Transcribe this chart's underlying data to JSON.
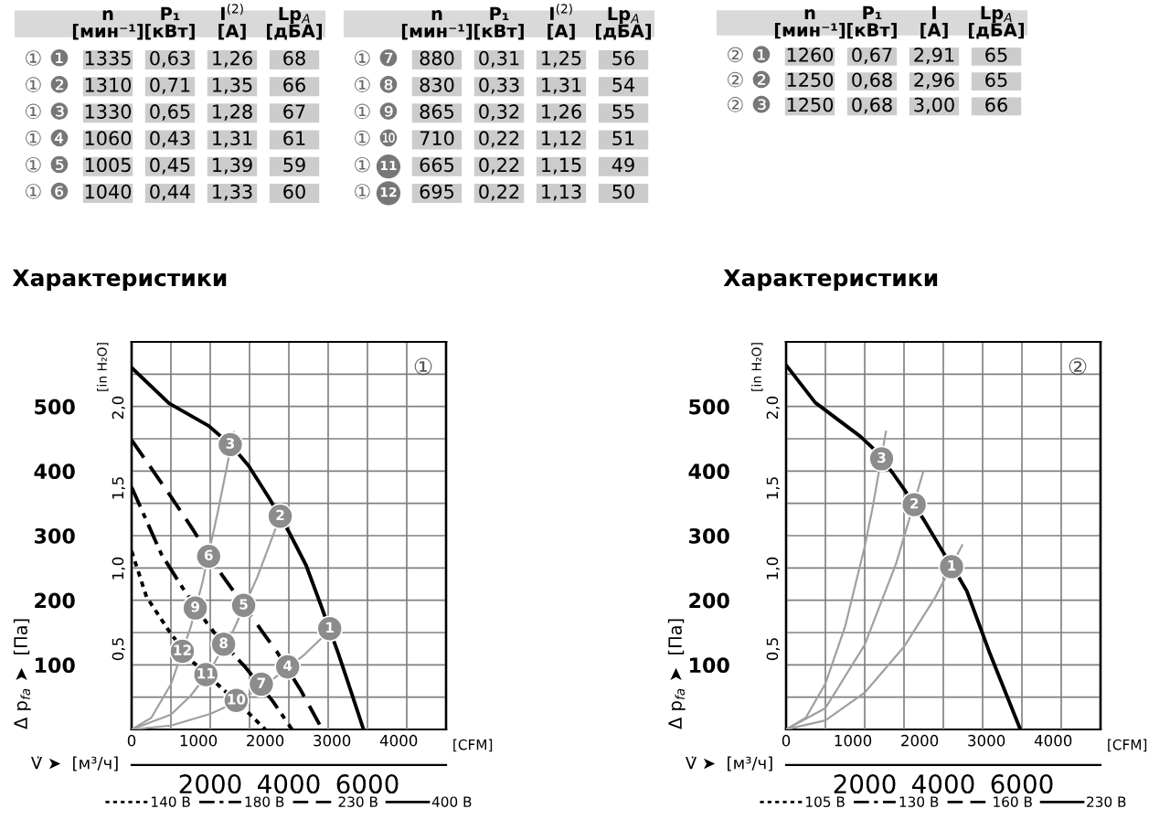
{
  "chart_data": [
    {
      "type": "other",
      "categories": [
        "n\n[мин⁻¹]",
        "P₁\n[кВт]",
        "I$^{(2)}$\n[A]",
        "Lp$_{A}$\n[дБА]"
      ],
      "y_categories": [
        "① ❶",
        "① ❷",
        "① ❸",
        "① ❹",
        "① ❺",
        "① ❻"
      ],
      "cell_labels": [
        [
          "1335",
          "0,63",
          "1,26",
          "68"
        ],
        [
          "1310",
          "0,71",
          "1,35",
          "66"
        ],
        [
          "1330",
          "0,65",
          "1,28",
          "67"
        ],
        [
          "1060",
          "0,43",
          "1,31",
          "61"
        ],
        [
          "1005",
          "0,45",
          "1,39",
          "59"
        ],
        [
          "1040",
          "0,44",
          "1,33",
          "60"
        ]
      ]
    },
    {
      "type": "other",
      "categories": [
        "n\n[мин⁻¹]",
        "P₁\n[кВт]",
        "I$^{(2)}$\n[A]",
        "Lp$_{A}$\n[дБА]"
      ],
      "y_categories": [
        "① ❼",
        "① ❽",
        "① ❾",
        "① ❿",
        "① 11",
        "① 12"
      ],
      "cell_labels": [
        [
          "880",
          "0,31",
          "1,25",
          "56"
        ],
        [
          "830",
          "0,33",
          "1,31",
          "54"
        ],
        [
          "865",
          "0,32",
          "1,26",
          "55"
        ],
        [
          "710",
          "0,22",
          "1,12",
          "51"
        ],
        [
          "665",
          "0,22",
          "1,15",
          "49"
        ],
        [
          "695",
          "0,22",
          "1,13",
          "50"
        ]
      ]
    },
    {
      "type": "other",
      "categories": [
        "n\n[мин⁻¹]",
        "P₁\n[кВт]",
        "I\n[A]",
        "Lp$_{A}$\n[дБА]"
      ],
      "y_categories": [
        "② ❶",
        "② ❷",
        "② ❸"
      ],
      "cell_labels": [
        [
          "1260",
          "0,67",
          "2,91",
          "65"
        ],
        [
          "1250",
          "0,68",
          "2,96",
          "65"
        ],
        [
          "1250",
          "0,68",
          "3,00",
          "66"
        ]
      ]
    },
    {
      "type": "line",
      "title": "Характеристики",
      "xlabel": "V̇ ➤  [м³/ч]",
      "ylabel": "Δ p$_{fa}$ ➤  [Па]",
      "y2label": "[in H₂O]",
      "x2label": "[CFM]",
      "xlim": [
        0,
        8000
      ],
      "xticks": [
        {
          "value": 1000,
          "label": null
        },
        2000,
        {
          "value": 3000,
          "label": null
        },
        4000,
        {
          "value": 5000,
          "label": null
        },
        6000,
        {
          "value": 7000,
          "label": null
        }
      ],
      "x2lim": [
        0,
        4709
      ],
      "x2ticks": [
        0,
        1000,
        2000,
        3000,
        4000
      ],
      "ylim": [
        0,
        600
      ],
      "yticks": [
        {
          "value": 50,
          "label": null
        },
        100,
        {
          "value": 150,
          "label": null
        },
        200,
        {
          "value": 250,
          "label": null
        },
        300,
        {
          "value": 350,
          "label": null
        },
        400,
        {
          "value": 450,
          "label": null
        },
        500,
        {
          "value": 550,
          "label": null
        }
      ],
      "y2lim": [
        0,
        2.409
      ],
      "y2ticks": [
        {
          "value": 0.5,
          "label": "0,5"
        },
        {
          "value": 1.0,
          "label": "1,0"
        },
        {
          "value": 1.5,
          "label": "1,5"
        },
        {
          "value": 2.0,
          "label": "2,0"
        }
      ],
      "grid": true,
      "legend": "bottom",
      "annotations": [
        "①",
        {
          "text": "1",
          "x": 5040,
          "y": 156
        },
        {
          "text": "2",
          "x": 3780,
          "y": 330
        },
        {
          "text": "3",
          "x": 2510,
          "y": 441
        },
        {
          "text": "4",
          "x": 3970,
          "y": 97
        },
        {
          "text": "5",
          "x": 2850,
          "y": 192
        },
        {
          "text": "6",
          "x": 1960,
          "y": 268
        },
        {
          "text": "7",
          "x": 3300,
          "y": 70
        },
        {
          "text": "8",
          "x": 2340,
          "y": 132
        },
        {
          "text": "9",
          "x": 1620,
          "y": 188
        },
        {
          "text": "10",
          "x": 2660,
          "y": 45
        },
        {
          "text": "11",
          "x": 1890,
          "y": 85
        },
        {
          "text": "12",
          "x": 1290,
          "y": 121
        }
      ],
      "series": [
        {
          "name": "140 В",
          "type": "line",
          "line_style": "dotted",
          "color": "#000000",
          "x": [
            0,
            380,
            1000,
            1550,
            2200,
            2400,
            2950,
            3400
          ],
          "values": [
            276,
            205,
            148,
            105,
            69,
            58,
            27,
            0
          ]
        },
        {
          "name": "180 В",
          "type": "line",
          "line_style": "dashdot",
          "color": "#000000",
          "x": [
            0,
            760,
            1300,
            1900,
            2100,
            2700,
            2900,
            3600,
            4080
          ],
          "values": [
            375,
            271,
            219,
            166,
            150,
            109,
            96,
            43,
            0
          ]
        },
        {
          "name": "230 В",
          "type": "line",
          "line_style": "dashed",
          "color": "#000000",
          "x": [
            0,
            950,
            1500,
            2300,
            2500,
            3400,
            3700,
            4300,
            4850
          ],
          "values": [
            448,
            365,
            315,
            239,
            222,
            145,
            120,
            61,
            0
          ]
        },
        {
          "name": "400 В",
          "type": "line",
          "line_style": "solid",
          "color": "#000000",
          "x": [
            0,
            950,
            1960,
            2300,
            2700,
            2980,
            3500,
            4000,
            4440,
            4800,
            5250,
            5450,
            5900
          ],
          "values": [
            560,
            505,
            470,
            452,
            428,
            408,
            358,
            306,
            254,
            195,
            119,
            83,
            0
          ]
        },
        {
          "type": "line",
          "line_style": "solid",
          "color": "#a0a0a0",
          "x": [
            0,
            500,
            1000,
            1500,
            1800,
            2200,
            2600
          ],
          "values": [
            0,
            18,
            70,
            158,
            227,
            339,
            460
          ]
        },
        {
          "type": "line",
          "line_style": "solid",
          "color": "#a0a0a0",
          "x": [
            0,
            1000,
            1500,
            2000,
            2600,
            3200,
            3880
          ],
          "values": [
            0,
            23,
            52,
            92,
            155,
            236,
            346
          ]
        },
        {
          "type": "line",
          "line_style": "solid",
          "color": "#a0a0a0",
          "x": [
            0,
            1000,
            2000,
            2400,
            3000,
            3600,
            4400,
            5150
          ],
          "values": [
            0,
            6,
            24,
            35,
            54,
            78,
            116,
            160
          ]
        },
        {
          "type": "scatter",
          "marker": "circle",
          "color": "#8c8c8c",
          "x": [
            5040,
            3780,
            2510,
            3970,
            2850,
            1960,
            3300,
            2340,
            1620,
            2660,
            1890,
            1290
          ],
          "values": [
            156,
            330,
            441,
            97,
            192,
            268,
            70,
            132,
            188,
            45,
            85,
            121
          ]
        }
      ]
    },
    {
      "type": "line",
      "title": "Характеристики",
      "xlabel": "V̇ ➤  [м³/ч]",
      "ylabel": "Δ p$_{fa}$ ➤  [Па]",
      "y2label": "[in H₂O]",
      "x2label": "[CFM]",
      "xlim": [
        0,
        8000
      ],
      "xticks": [
        {
          "value": 1000,
          "label": null
        },
        2000,
        {
          "value": 3000,
          "label": null
        },
        4000,
        {
          "value": 5000,
          "label": null
        },
        6000,
        {
          "value": 7000,
          "label": null
        }
      ],
      "x2lim": [
        0,
        4709
      ],
      "x2ticks": [
        0,
        1000,
        2000,
        3000,
        4000
      ],
      "ylim": [
        0,
        600
      ],
      "yticks": [
        {
          "value": 50,
          "label": null
        },
        100,
        {
          "value": 150,
          "label": null
        },
        200,
        {
          "value": 250,
          "label": null
        },
        300,
        {
          "value": 350,
          "label": null
        },
        400,
        {
          "value": 450,
          "label": null
        },
        500,
        {
          "value": 550,
          "label": null
        }
      ],
      "y2lim": [
        0,
        2.409
      ],
      "y2ticks": [
        {
          "value": 0.5,
          "label": "0,5"
        },
        {
          "value": 1.0,
          "label": "1,0"
        },
        {
          "value": 1.5,
          "label": "1,5"
        },
        {
          "value": 2.0,
          "label": "2,0"
        }
      ],
      "grid": true,
      "legend": "bottom",
      "annotations": [
        "②",
        {
          "text": "1",
          "x": 4210,
          "y": 252
        },
        {
          "text": "2",
          "x": 3260,
          "y": 348
        },
        {
          "text": "3",
          "x": 2430,
          "y": 419
        }
      ],
      "series": [
        {
          "name": "105 В",
          "type": "line",
          "line_style": "dotted",
          "color": "#000000"
        },
        {
          "name": "130 В",
          "type": "line",
          "line_style": "dashdot",
          "color": "#000000"
        },
        {
          "name": "160 В",
          "type": "line",
          "line_style": "dashed",
          "color": "#000000"
        },
        {
          "name": "230 В",
          "type": "line",
          "line_style": "solid",
          "color": "#000000",
          "x": [
            0,
            740,
            1880,
            2200,
            2700,
            3000,
            3500,
            4000,
            4400,
            4600,
            5170,
            5960
          ],
          "values": [
            564,
            506,
            454,
            436,
            398,
            372,
            325,
            274,
            235,
            214,
            120,
            0
          ]
        },
        {
          "type": "line",
          "line_style": "solid",
          "color": "#a0a0a0",
          "x": [
            0,
            500,
            1000,
            1500,
            2000,
            2200,
            2540
          ],
          "values": [
            0,
            18,
            71,
            159,
            283,
            343,
            461
          ]
        },
        {
          "type": "line",
          "line_style": "solid",
          "color": "#a0a0a0",
          "x": [
            0,
            1000,
            2000,
            2800,
            3490
          ],
          "values": [
            0,
            33,
            131,
            257,
            399
          ]
        },
        {
          "type": "line",
          "line_style": "solid",
          "color": "#a0a0a0",
          "x": [
            0,
            1000,
            2000,
            3000,
            3800,
            4480
          ],
          "values": [
            0,
            14,
            57,
            128,
            205,
            285
          ]
        },
        {
          "type": "scatter",
          "marker": "circle",
          "color": "#8c8c8c",
          "x": [
            4210,
            3260,
            2430
          ],
          "values": [
            252,
            348,
            419
          ]
        }
      ]
    }
  ]
}
